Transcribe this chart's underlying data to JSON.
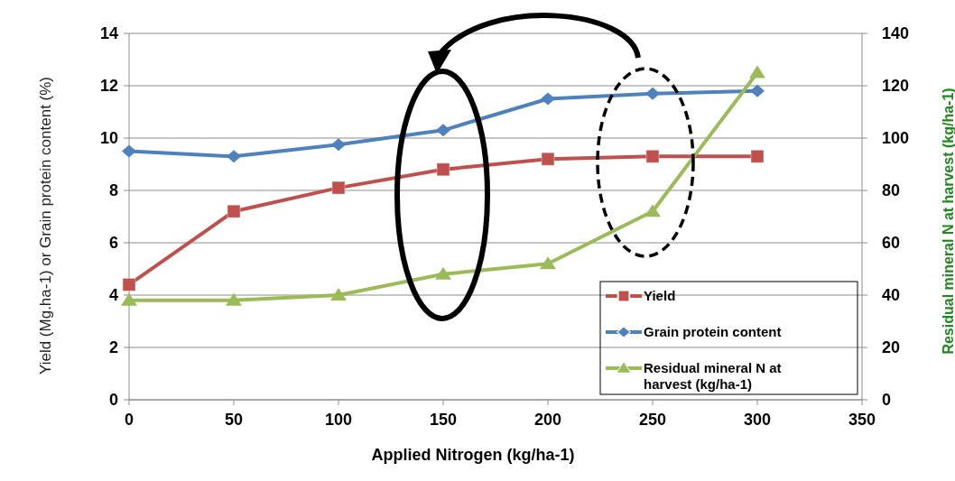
{
  "chart_data": {
    "type": "line",
    "xlabel": "Applied Nitrogen (kg/ha-1)",
    "ylabel": "Yield (Mg.ha-1) or Grain protein content (%)",
    "y2label": "Residual mineral N at harvest (kg/ha-1)",
    "x": [
      0,
      50,
      100,
      150,
      200,
      250,
      300
    ],
    "xlim": [
      0,
      350
    ],
    "xticks": [
      0,
      50,
      100,
      150,
      200,
      250,
      300,
      350
    ],
    "ylim": [
      0,
      14
    ],
    "yticks": [
      0,
      2,
      4,
      6,
      8,
      10,
      12,
      14
    ],
    "y2lim": [
      0,
      140
    ],
    "y2ticks": [
      0,
      20,
      40,
      60,
      80,
      100,
      120,
      140
    ],
    "grid": "y",
    "legend": "bottom right",
    "series": [
      {
        "name": "Yield",
        "color": "#c0504d",
        "marker": "square",
        "values": [
          4.4,
          7.2,
          8.1,
          8.8,
          9.2,
          9.3,
          9.3
        ]
      },
      {
        "name": "Grain protein content",
        "color": "#4f81bd",
        "marker": "diamond",
        "values": [
          9.5,
          9.3,
          9.75,
          10.3,
          11.5,
          11.7,
          11.8
        ]
      },
      {
        "name": "Residual mineral N at harvest (kg/ha-1)",
        "color": "#9bbb59",
        "marker": "triangle",
        "axis": "y2",
        "values": [
          38,
          38,
          40,
          48,
          52,
          72,
          125
        ]
      }
    ]
  }
}
